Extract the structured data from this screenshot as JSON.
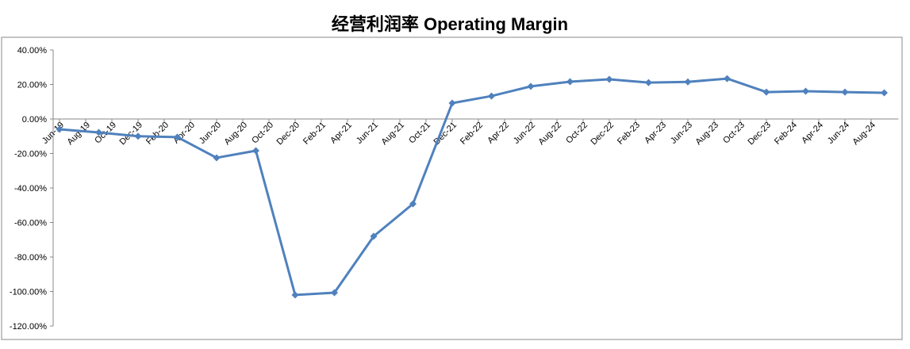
{
  "chart_data": {
    "type": "line",
    "title": "经营利润率 Operating Margin",
    "categories": [
      "Jun-19",
      null,
      "Aug-19",
      null,
      "Oct-19",
      null,
      "Dec-19",
      null,
      "Feb-20",
      null,
      "Apr-20",
      null,
      "Jun-20",
      null,
      "Aug-20",
      null,
      "Oct-20",
      null,
      "Dec-20",
      null,
      "Feb-21",
      null,
      "Apr-21",
      null,
      "Jun-21",
      null,
      "Aug-21",
      null,
      "Oct-21",
      null,
      "Dec-21",
      null,
      "Feb-22",
      null,
      "Apr-22",
      null,
      "Jun-22",
      null,
      "Aug-22",
      null,
      "Oct-22",
      null,
      "Dec-22",
      null,
      "Feb-23",
      null,
      "Apr-23",
      null,
      "Jun-23",
      null,
      "Aug-23",
      null,
      "Oct-23",
      null,
      "Dec-23",
      null,
      "Feb-24",
      null,
      "Apr-24",
      null,
      "Jun-24",
      null,
      "Aug-24",
      null
    ],
    "series": [
      {
        "color": "#4f81bd",
        "values": [
          -6,
          null,
          null,
          -7.8,
          null,
          null,
          -10,
          null,
          null,
          -10.5,
          null,
          null,
          -22.5,
          null,
          null,
          -18.4,
          null,
          null,
          -102,
          null,
          null,
          -100.7,
          null,
          null,
          -68,
          null,
          null,
          -49.2,
          null,
          null,
          9.2,
          null,
          null,
          13.3,
          null,
          null,
          18.9,
          null,
          null,
          21.6,
          null,
          null,
          23,
          null,
          null,
          21.1,
          null,
          null,
          21.5,
          null,
          null,
          23.4,
          null,
          null,
          15.6,
          null,
          null,
          16.1,
          null,
          null,
          15.6,
          null,
          null,
          15.2
        ]
      }
    ],
    "ylim": [
      -120,
      40
    ],
    "yticks": [
      {
        "value": -120,
        "label": "-120.00%"
      },
      {
        "value": -100,
        "label": "-100.00%"
      },
      {
        "value": -80,
        "label": "-80.00%"
      },
      {
        "value": -60,
        "label": "-60.00%"
      },
      {
        "value": -40,
        "label": "-40.00%"
      },
      {
        "value": -20,
        "label": "-20.00%"
      },
      {
        "value": 0,
        "label": "0.00%"
      },
      {
        "value": 20,
        "label": "20.00%"
      },
      {
        "value": 40,
        "label": "40.00%"
      }
    ]
  }
}
